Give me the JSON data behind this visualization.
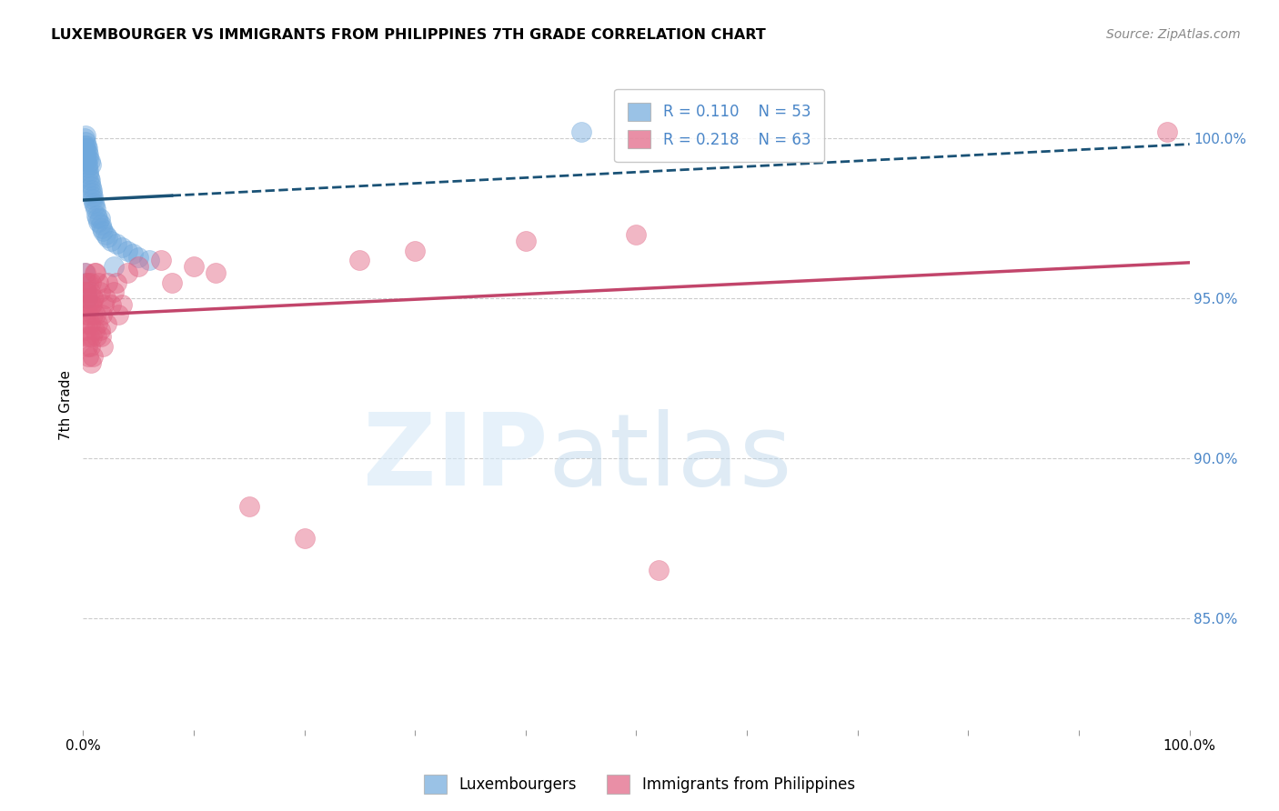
{
  "title": "LUXEMBOURGER VS IMMIGRANTS FROM PHILIPPINES 7TH GRADE CORRELATION CHART",
  "source": "Source: ZipAtlas.com",
  "ylabel": "7th Grade",
  "right_yticks": [
    85.0,
    90.0,
    95.0,
    100.0
  ],
  "xlim": [
    0.0,
    100.0
  ],
  "ylim": [
    81.5,
    101.8
  ],
  "blue_R": 0.11,
  "blue_N": 53,
  "pink_R": 0.218,
  "pink_N": 63,
  "blue_color": "#6fa8dc",
  "pink_color": "#e06080",
  "blue_line_color": "#1a5276",
  "pink_line_color": "#c2456b",
  "legend_label_blue": "Luxembourgers",
  "legend_label_pink": "Immigrants from Philippines",
  "background_color": "#ffffff",
  "grid_color": "#cccccc",
  "tick_label_color": "#4a86c8",
  "blue_scatter_x": [
    0.1,
    0.15,
    0.15,
    0.2,
    0.2,
    0.2,
    0.25,
    0.25,
    0.3,
    0.3,
    0.35,
    0.35,
    0.4,
    0.4,
    0.45,
    0.45,
    0.5,
    0.5,
    0.55,
    0.6,
    0.6,
    0.65,
    0.7,
    0.7,
    0.75,
    0.8,
    0.85,
    0.9,
    0.95,
    1.0,
    1.1,
    1.2,
    1.3,
    1.4,
    1.5,
    1.6,
    1.7,
    1.8,
    2.0,
    2.2,
    2.5,
    3.0,
    3.5,
    4.0,
    4.5,
    5.0,
    6.0,
    0.1,
    0.2,
    0.3,
    0.4,
    2.8,
    45.0
  ],
  "blue_scatter_y": [
    99.6,
    99.8,
    100.0,
    99.5,
    99.7,
    100.1,
    99.4,
    99.9,
    99.3,
    99.8,
    99.2,
    99.6,
    99.1,
    99.7,
    99.0,
    99.5,
    98.9,
    99.4,
    98.8,
    98.7,
    99.3,
    98.6,
    98.5,
    99.2,
    98.4,
    98.3,
    98.2,
    98.1,
    98.0,
    97.9,
    97.8,
    97.6,
    97.5,
    97.4,
    97.5,
    97.3,
    97.2,
    97.1,
    97.0,
    96.9,
    96.8,
    96.7,
    96.6,
    96.5,
    96.4,
    96.3,
    96.2,
    95.8,
    95.5,
    95.2,
    95.0,
    96.0,
    100.2
  ],
  "pink_scatter_x": [
    0.1,
    0.15,
    0.2,
    0.2,
    0.25,
    0.3,
    0.3,
    0.35,
    0.4,
    0.4,
    0.45,
    0.5,
    0.5,
    0.55,
    0.6,
    0.6,
    0.65,
    0.7,
    0.7,
    0.75,
    0.8,
    0.85,
    0.9,
    0.95,
    1.0,
    1.0,
    1.1,
    1.2,
    1.3,
    1.4,
    1.5,
    1.5,
    1.6,
    1.7,
    1.8,
    1.9,
    2.0,
    2.1,
    2.2,
    2.5,
    2.8,
    3.0,
    3.2,
    3.5,
    4.0,
    5.0,
    7.0,
    8.0,
    10.0,
    12.0,
    15.0,
    20.0,
    25.0,
    30.0,
    40.0,
    50.0,
    52.0,
    0.3,
    0.5,
    0.7,
    0.9,
    1.1,
    98.0
  ],
  "pink_scatter_y": [
    94.8,
    95.2,
    94.5,
    95.8,
    94.0,
    93.8,
    95.5,
    94.2,
    93.5,
    95.0,
    94.8,
    93.2,
    94.5,
    93.8,
    94.2,
    95.2,
    93.5,
    93.0,
    95.5,
    94.8,
    93.8,
    94.5,
    93.2,
    95.0,
    94.0,
    95.8,
    94.5,
    93.8,
    94.2,
    95.5,
    94.0,
    95.2,
    93.8,
    94.5,
    93.5,
    94.8,
    95.0,
    94.2,
    95.5,
    94.8,
    95.2,
    95.5,
    94.5,
    94.8,
    95.8,
    96.0,
    96.2,
    95.5,
    96.0,
    95.8,
    88.5,
    87.5,
    96.2,
    96.5,
    96.8,
    97.0,
    86.5,
    95.2,
    95.5,
    94.8,
    95.0,
    95.8,
    100.2
  ]
}
